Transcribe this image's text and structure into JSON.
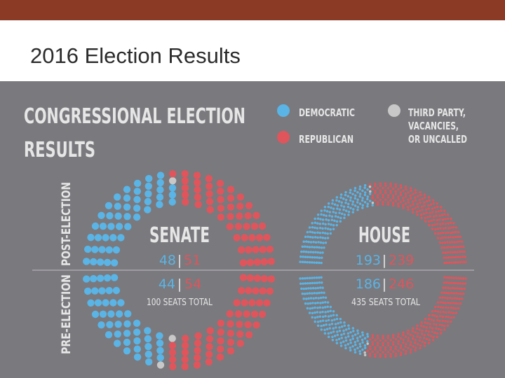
{
  "slide_title": "2016 Election Results",
  "colors": {
    "topbar": "#8b3a26",
    "panel": "#7a797e",
    "democratic": "#5ab4e5",
    "republican": "#e0555b",
    "other": "#c8c8c8",
    "text_light": "#e6e6e6"
  },
  "chart_data": [
    {
      "type": "parliament-dot",
      "title": "CONGRESSIONAL ELECTION RESULTS",
      "legend": {
        "placement": "top-right",
        "items": [
          {
            "key": "democratic",
            "label": "DEMOCRATIC"
          },
          {
            "key": "republican",
            "label": "REPUBLICAN"
          },
          {
            "key": "other",
            "label_lines": [
              "THIRD PARTY,",
              "VACANCIES,",
              "OR UNCALLED"
            ]
          }
        ]
      },
      "row_labels": [
        "POST-ELECTION",
        "PRE-ELECTION"
      ],
      "chambers": [
        {
          "name": "SENATE",
          "total_label": "100 SEATS TOTAL",
          "total_seats": 100,
          "post": {
            "democratic": 48,
            "republican": 51,
            "other": 1
          },
          "pre": {
            "democratic": 44,
            "republican": 54,
            "other": 2
          }
        },
        {
          "name": "HOUSE",
          "total_label": "435 SEATS TOTAL",
          "total_seats": 435,
          "post": {
            "democratic": 193,
            "republican": 239,
            "other": 3
          },
          "pre": {
            "democratic": 186,
            "republican": 246,
            "other": 3
          }
        }
      ]
    }
  ]
}
